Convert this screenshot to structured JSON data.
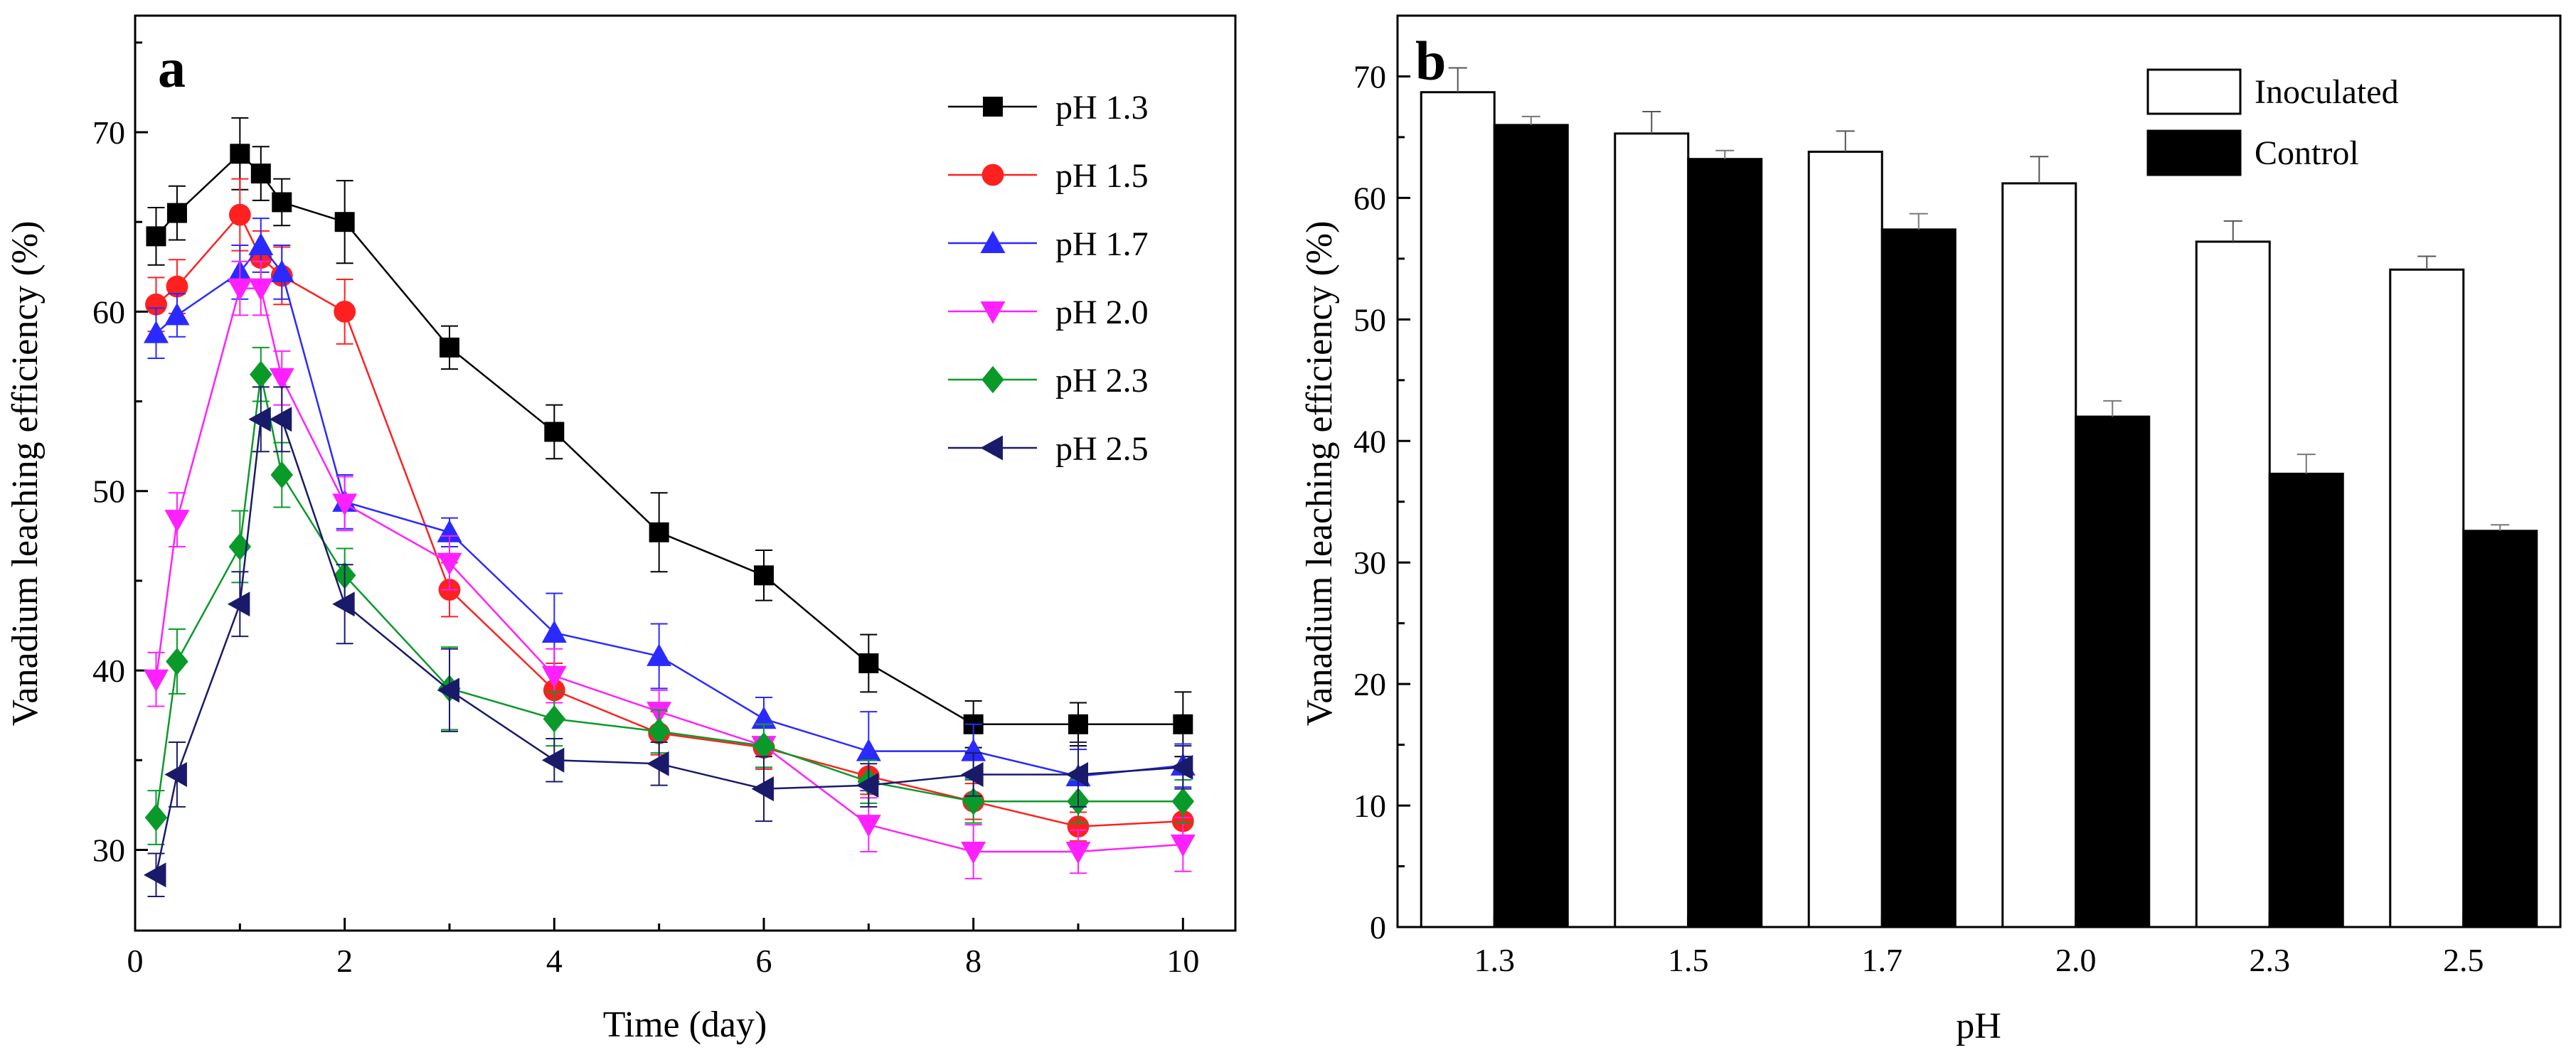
{
  "chart_data": [
    {
      "panel": "a",
      "type": "line",
      "xlabel": "Time (day)",
      "ylabel": "Vanadium leaching efficiency (%)",
      "xlim": [
        0,
        10.5
      ],
      "ylim": [
        25.5,
        76.5
      ],
      "xticks": [
        0,
        2,
        4,
        6,
        8,
        10
      ],
      "yticks": [
        30,
        40,
        50,
        60,
        70
      ],
      "xtick_labels": [
        "0",
        "2",
        "4",
        "6",
        "8",
        "10"
      ],
      "ytick_labels": [
        "30",
        "40",
        "50",
        "60",
        "70"
      ],
      "grid": false,
      "legend": "top-right",
      "x": [
        0.2,
        0.4,
        1,
        1.2,
        1.4,
        2,
        3,
        4,
        5,
        6,
        7,
        8,
        9,
        10
      ],
      "series": [
        {
          "name": "pH 1.3",
          "color": "#000000",
          "marker": "square",
          "values": [
            64.2,
            65.5,
            68.8,
            67.7,
            66.1,
            65.0,
            58.0,
            53.3,
            47.7,
            45.3,
            40.4,
            37.0,
            37.0,
            37.0
          ],
          "errors": [
            1.6,
            1.5,
            2.0,
            1.5,
            1.3,
            2.3,
            1.2,
            1.5,
            2.2,
            1.4,
            1.6,
            1.3,
            1.2,
            1.8
          ]
        },
        {
          "name": "pH 1.5",
          "color": "#ff2020",
          "marker": "circle",
          "values": [
            60.4,
            61.4,
            65.4,
            63.0,
            62.0,
            60.0,
            44.5,
            38.9,
            36.5,
            35.7,
            34.1,
            32.7,
            31.3,
            31.6
          ],
          "errors": [
            1.5,
            1.5,
            2.0,
            1.5,
            1.6,
            1.8,
            1.5,
            1.5,
            1.2,
            1.2,
            1.0,
            1.0,
            0.8,
            1.0
          ]
        },
        {
          "name": "pH 1.7",
          "color": "#2a2aff",
          "marker": "triangle-up",
          "values": [
            58.8,
            59.8,
            62.2,
            63.7,
            62.2,
            49.4,
            47.7,
            42.1,
            40.8,
            37.3,
            35.5,
            35.5,
            34.1,
            34.7
          ],
          "errors": [
            1.4,
            1.2,
            1.5,
            1.5,
            1.5,
            1.5,
            0.8,
            2.2,
            1.8,
            1.2,
            2.2,
            1.5,
            1.5,
            1.2
          ]
        },
        {
          "name": "pH 2.0",
          "color": "#ff20ff",
          "marker": "triangle-down",
          "values": [
            39.5,
            48.4,
            61.3,
            61.3,
            56.3,
            49.3,
            46.0,
            39.7,
            37.7,
            35.8,
            31.4,
            29.9,
            29.9,
            30.3
          ],
          "errors": [
            1.5,
            1.5,
            1.5,
            1.5,
            1.5,
            1.5,
            1.5,
            1.5,
            1.2,
            1.2,
            1.5,
            1.5,
            1.2,
            1.5
          ]
        },
        {
          "name": "pH 2.3",
          "color": "#0a9a2a",
          "marker": "diamond",
          "values": [
            31.8,
            40.5,
            46.9,
            56.5,
            50.9,
            45.3,
            39.0,
            37.3,
            36.6,
            35.8,
            33.8,
            32.7,
            32.7,
            32.7
          ],
          "errors": [
            1.5,
            1.8,
            2.0,
            1.5,
            1.8,
            1.5,
            2.3,
            1.5,
            1.2,
            1.2,
            1.2,
            1.2,
            1.2,
            1.2
          ]
        },
        {
          "name": "pH 2.5",
          "color": "#1a1a6a",
          "marker": "triangle-left",
          "values": [
            28.6,
            34.2,
            43.7,
            54.0,
            54.0,
            43.7,
            38.9,
            35.0,
            34.8,
            33.4,
            33.6,
            34.2,
            34.2,
            34.6
          ],
          "errors": [
            1.2,
            1.8,
            1.8,
            1.8,
            1.8,
            2.2,
            2.3,
            1.2,
            1.2,
            1.8,
            1.2,
            1.2,
            1.8,
            1.2
          ]
        }
      ]
    },
    {
      "panel": "b",
      "type": "bar",
      "xlabel": "pH",
      "ylabel": "Vanadium leaching efficiency (%)",
      "ylim": [
        0,
        75
      ],
      "yticks": [
        0,
        10,
        20,
        30,
        40,
        50,
        60,
        70
      ],
      "ytick_labels": [
        "0",
        "10",
        "20",
        "30",
        "40",
        "50",
        "60",
        "70"
      ],
      "grid": false,
      "legend": "top-right",
      "categories": [
        "1.3",
        "1.5",
        "1.7",
        "2.0",
        "2.3",
        "2.5"
      ],
      "series": [
        {
          "name": "Inoculated",
          "fill": "#ffffff",
          "stroke": "#000000",
          "values": [
            68.7,
            65.3,
            63.8,
            61.2,
            56.4,
            54.1
          ],
          "errors": [
            2.0,
            1.8,
            1.7,
            2.2,
            1.7,
            1.1
          ]
        },
        {
          "name": "Control",
          "fill": "#000000",
          "stroke": "#000000",
          "values": [
            66.0,
            63.2,
            57.4,
            42.0,
            37.3,
            32.6
          ],
          "errors": [
            0.7,
            0.7,
            1.3,
            1.3,
            1.6,
            0.5
          ]
        }
      ]
    }
  ]
}
